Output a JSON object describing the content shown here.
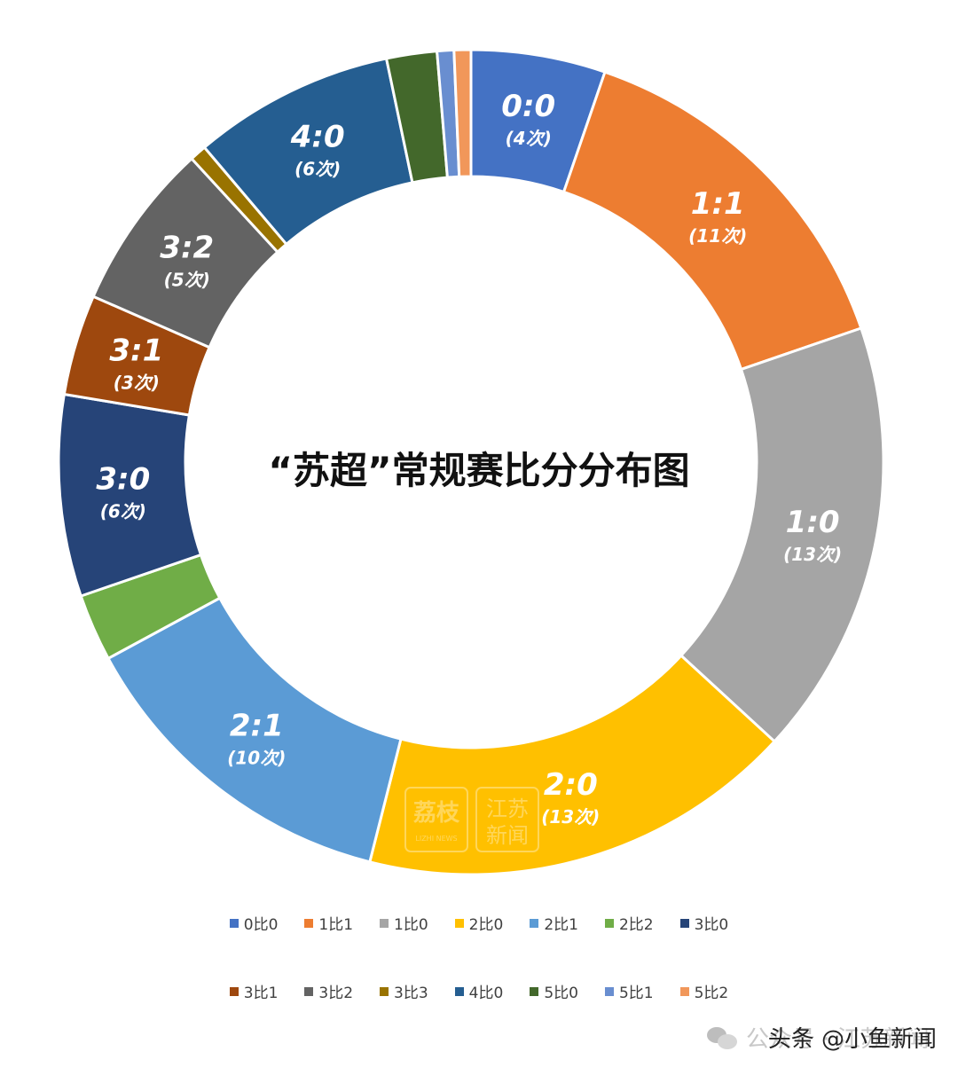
{
  "chart_data": {
    "type": "pie",
    "title": "“苏超”常规赛比分分布图",
    "slices": [
      {
        "name": "0比0",
        "label": "0:0",
        "count_label": "(4次)",
        "value": 4,
        "color": "#4472C4"
      },
      {
        "name": "1比1",
        "label": "1:1",
        "count_label": "(11次)",
        "value": 11,
        "color": "#ED7D31"
      },
      {
        "name": "1比0",
        "label": "1:0",
        "count_label": "(13次)",
        "value": 13,
        "color": "#A5A5A5"
      },
      {
        "name": "2比0",
        "label": "2:0",
        "count_label": "(13次)",
        "value": 13,
        "color": "#FFC000"
      },
      {
        "name": "2比1",
        "label": "2:1",
        "count_label": "(10次)",
        "value": 10,
        "color": "#5B9BD5"
      },
      {
        "name": "2比2",
        "label": "",
        "count_label": "",
        "value": 2,
        "color": "#70AD47"
      },
      {
        "name": "3比0",
        "label": "3:0",
        "count_label": "(6次)",
        "value": 6,
        "color": "#264478"
      },
      {
        "name": "3比1",
        "label": "3:1",
        "count_label": "(3次)",
        "value": 3,
        "color": "#9E480E"
      },
      {
        "name": "3比2",
        "label": "3:2",
        "count_label": "(5次)",
        "value": 5,
        "color": "#636363"
      },
      {
        "name": "3比3",
        "label": "",
        "count_label": "",
        "value": 0.5,
        "color": "#997300"
      },
      {
        "name": "4比0",
        "label": "4:0",
        "count_label": "(6次)",
        "value": 6,
        "color": "#255E91"
      },
      {
        "name": "5比0",
        "label": "",
        "count_label": "",
        "value": 1.5,
        "color": "#43682B"
      },
      {
        "name": "5比1",
        "label": "",
        "count_label": "",
        "value": 0.5,
        "color": "#698ED0"
      },
      {
        "name": "5比2",
        "label": "",
        "count_label": "",
        "value": 0.5,
        "color": "#F1975A"
      }
    ],
    "legend_position": "bottom"
  },
  "watermark": {
    "logo_text": "荔枝",
    "logo_sub": "LIZHI NEWS",
    "logo2_line1": "江苏",
    "logo2_line2": "新闻",
    "account_prefix": "公众号 · 江苏新闻",
    "account_text": "头条 @小鱼新闻"
  }
}
